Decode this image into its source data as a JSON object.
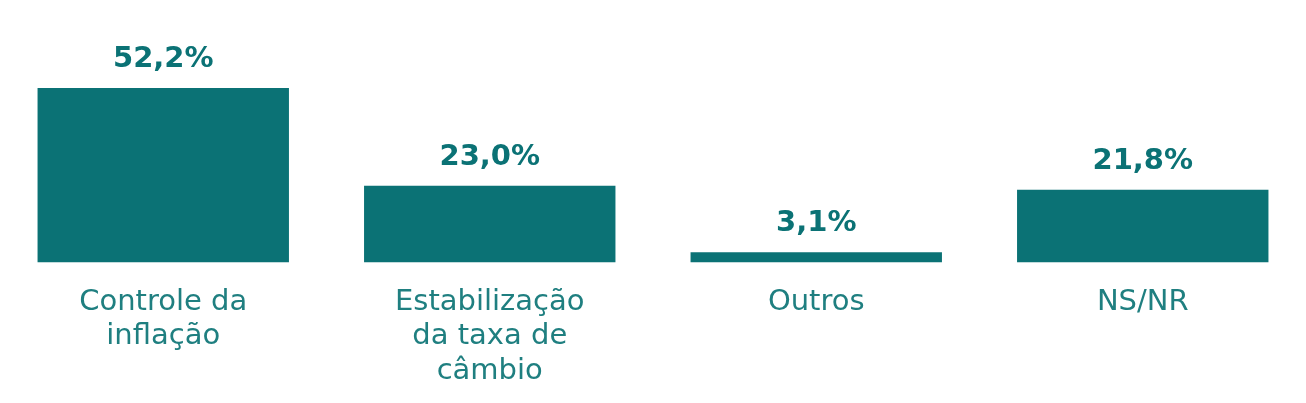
{
  "chart_data": {
    "type": "bar",
    "categories": [
      "Controle da inflação",
      "Estabilização da taxa de câmbio",
      "Outros",
      "NS/NR"
    ],
    "values": [
      52.2,
      23.0,
      3.1,
      21.8
    ],
    "value_labels": [
      "52,2%",
      "23,0%",
      "3,1%",
      "21,8%"
    ],
    "color": "#0b7275"
  }
}
